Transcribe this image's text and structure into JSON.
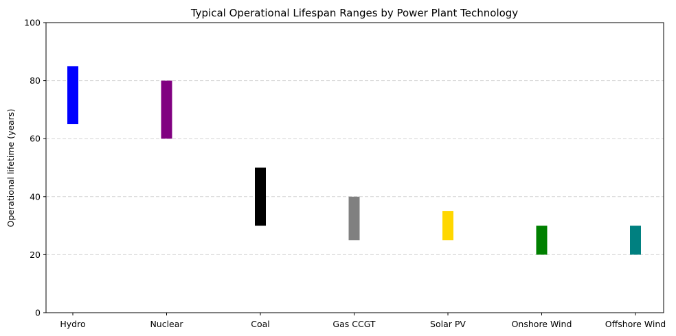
{
  "chart_data": {
    "type": "bar",
    "title": "Typical Operational Lifespan Ranges by Power Plant Technology",
    "xlabel": "",
    "ylabel": "Operational lifetime (years)",
    "ylim": [
      0,
      100
    ],
    "yticks": [
      0,
      20,
      40,
      60,
      80,
      100
    ],
    "grid": "y-dashed",
    "categories": [
      "Hydro",
      "Nuclear",
      "Coal",
      "Gas CCGT",
      "Solar PV",
      "Onshore Wind",
      "Offshore Wind"
    ],
    "ranges": [
      {
        "low": 65,
        "high": 85,
        "color": "#0000ff"
      },
      {
        "low": 60,
        "high": 80,
        "color": "#800080"
      },
      {
        "low": 30,
        "high": 50,
        "color": "#000000"
      },
      {
        "low": 25,
        "high": 40,
        "color": "#808080"
      },
      {
        "low": 25,
        "high": 35,
        "color": "#ffd700"
      },
      {
        "low": 20,
        "high": 30,
        "color": "#008000"
      },
      {
        "low": 20,
        "high": 30,
        "color": "#008080"
      }
    ]
  }
}
